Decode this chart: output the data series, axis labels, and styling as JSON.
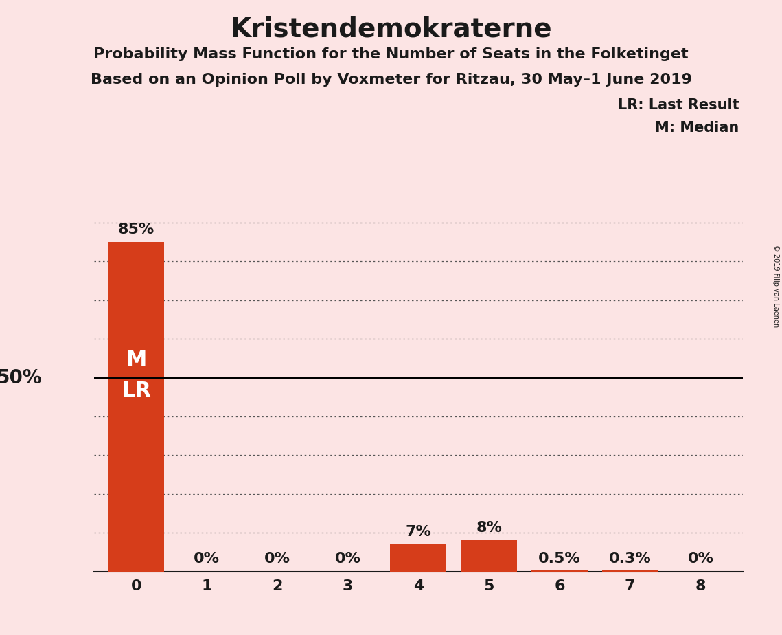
{
  "title": "Kristendemokraterne",
  "subtitle1": "Probability Mass Function for the Number of Seats in the Folketinget",
  "subtitle2": "Based on an Opinion Poll by Voxmeter for Ritzau, 30 May–1 June 2019",
  "copyright": "© 2019 Filip van Laenen",
  "x_values": [
    0,
    1,
    2,
    3,
    4,
    5,
    6,
    7,
    8
  ],
  "y_values": [
    85,
    0,
    0,
    0,
    7,
    8,
    0.5,
    0.3,
    0
  ],
  "bar_color": "#d63d1a",
  "background_color": "#fce4e4",
  "bar_labels": [
    "85%",
    "0%",
    "0%",
    "0%",
    "7%",
    "8%",
    "0.5%",
    "0.3%",
    "0%"
  ],
  "y_ref_line": 50,
  "y_ref_label": "50%",
  "legend_lr_label": "LR: Last Result",
  "legend_m_label": "M: Median",
  "median_seat": 0,
  "lr_seat": 0,
  "title_fontsize": 28,
  "subtitle_fontsize": 16,
  "bar_label_fontsize": 16,
  "y_label_fontsize": 20,
  "dotted_y_positions": [
    10,
    20,
    30,
    40,
    60,
    70,
    80,
    90
  ],
  "ylim": [
    0,
    95
  ],
  "xlim": [
    -0.6,
    8.6
  ]
}
